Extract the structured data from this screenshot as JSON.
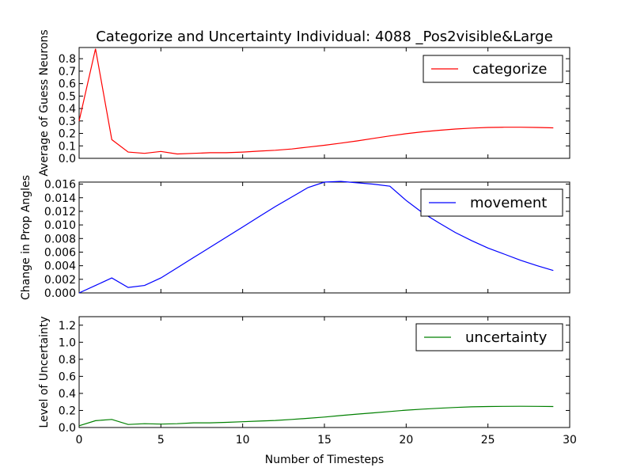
{
  "chart_data": [
    {
      "type": "line",
      "title": "Categorize and Uncertainty Individual: 4088 _Pos2visible&Large",
      "xlabel": "",
      "ylabel": "Average of Guess Neurons",
      "xlim": [
        0,
        30
      ],
      "ylim": [
        0,
        0.89
      ],
      "x_ticks": [
        "0",
        "5",
        "10",
        "15",
        "20",
        "25",
        "30"
      ],
      "y_ticks": [
        "0.0",
        "0.1",
        "0.2",
        "0.3",
        "0.4",
        "0.5",
        "0.6",
        "0.7",
        "0.8"
      ],
      "legend_placement": "top-right",
      "series": [
        {
          "name": "categorize",
          "color": "#ff0000",
          "x": [
            0,
            1,
            2,
            3,
            4,
            5,
            6,
            7,
            8,
            9,
            10,
            11,
            12,
            13,
            14,
            15,
            16,
            17,
            18,
            19,
            20,
            21,
            22,
            23,
            24,
            25,
            26,
            27,
            28,
            29
          ],
          "values": [
            0.3,
            0.88,
            0.15,
            0.05,
            0.04,
            0.055,
            0.035,
            0.04,
            0.045,
            0.045,
            0.05,
            0.058,
            0.065,
            0.075,
            0.09,
            0.105,
            0.122,
            0.14,
            0.16,
            0.18,
            0.198,
            0.213,
            0.225,
            0.235,
            0.243,
            0.248,
            0.25,
            0.25,
            0.248,
            0.245
          ]
        }
      ]
    },
    {
      "type": "line",
      "title": "",
      "xlabel": "",
      "ylabel": "Change in Prop Angles",
      "xlim": [
        0,
        30
      ],
      "ylim": [
        0,
        0.0163
      ],
      "x_ticks": [
        "0",
        "5",
        "10",
        "15",
        "20",
        "25",
        "30"
      ],
      "y_ticks": [
        "0.000",
        "0.002",
        "0.004",
        "0.006",
        "0.008",
        "0.010",
        "0.012",
        "0.014",
        "0.016"
      ],
      "legend_placement": "top-right",
      "series": [
        {
          "name": "movement",
          "color": "#0000ff",
          "x": [
            0,
            1,
            2,
            3,
            4,
            5,
            6,
            7,
            8,
            9,
            10,
            11,
            12,
            13,
            14,
            15,
            16,
            17,
            18,
            19,
            20,
            21,
            22,
            23,
            24,
            25,
            26,
            27,
            28,
            29
          ],
          "values": [
            0.0,
            0.0011,
            0.0022,
            0.0008,
            0.0011,
            0.0022,
            0.0037,
            0.0052,
            0.0067,
            0.0082,
            0.0097,
            0.0112,
            0.0127,
            0.0141,
            0.0155,
            0.0163,
            0.0164,
            0.0162,
            0.016,
            0.0157,
            0.0136,
            0.0118,
            0.0103,
            0.0089,
            0.0077,
            0.0066,
            0.0057,
            0.0048,
            0.004,
            0.0033
          ]
        }
      ]
    },
    {
      "type": "line",
      "title": "",
      "xlabel": "Number of Timesteps",
      "ylabel": "Level of Uncertainty",
      "xlim": [
        0,
        30
      ],
      "ylim": [
        0,
        1.3
      ],
      "x_ticks": [
        "0",
        "5",
        "10",
        "15",
        "20",
        "25",
        "30"
      ],
      "y_ticks": [
        "0.0",
        "0.2",
        "0.4",
        "0.6",
        "0.8",
        "1.0",
        "1.2"
      ],
      "legend_placement": "top-right",
      "series": [
        {
          "name": "uncertainty",
          "color": "#008000",
          "x": [
            0,
            1,
            2,
            3,
            4,
            5,
            6,
            7,
            8,
            9,
            10,
            11,
            12,
            13,
            14,
            15,
            16,
            17,
            18,
            19,
            20,
            21,
            22,
            23,
            24,
            25,
            26,
            27,
            28,
            29
          ],
          "values": [
            0.02,
            0.08,
            0.095,
            0.035,
            0.045,
            0.04,
            0.045,
            0.055,
            0.055,
            0.06,
            0.068,
            0.075,
            0.083,
            0.095,
            0.108,
            0.123,
            0.14,
            0.157,
            0.172,
            0.188,
            0.203,
            0.215,
            0.226,
            0.235,
            0.242,
            0.246,
            0.248,
            0.249,
            0.248,
            0.246
          ]
        }
      ]
    }
  ]
}
